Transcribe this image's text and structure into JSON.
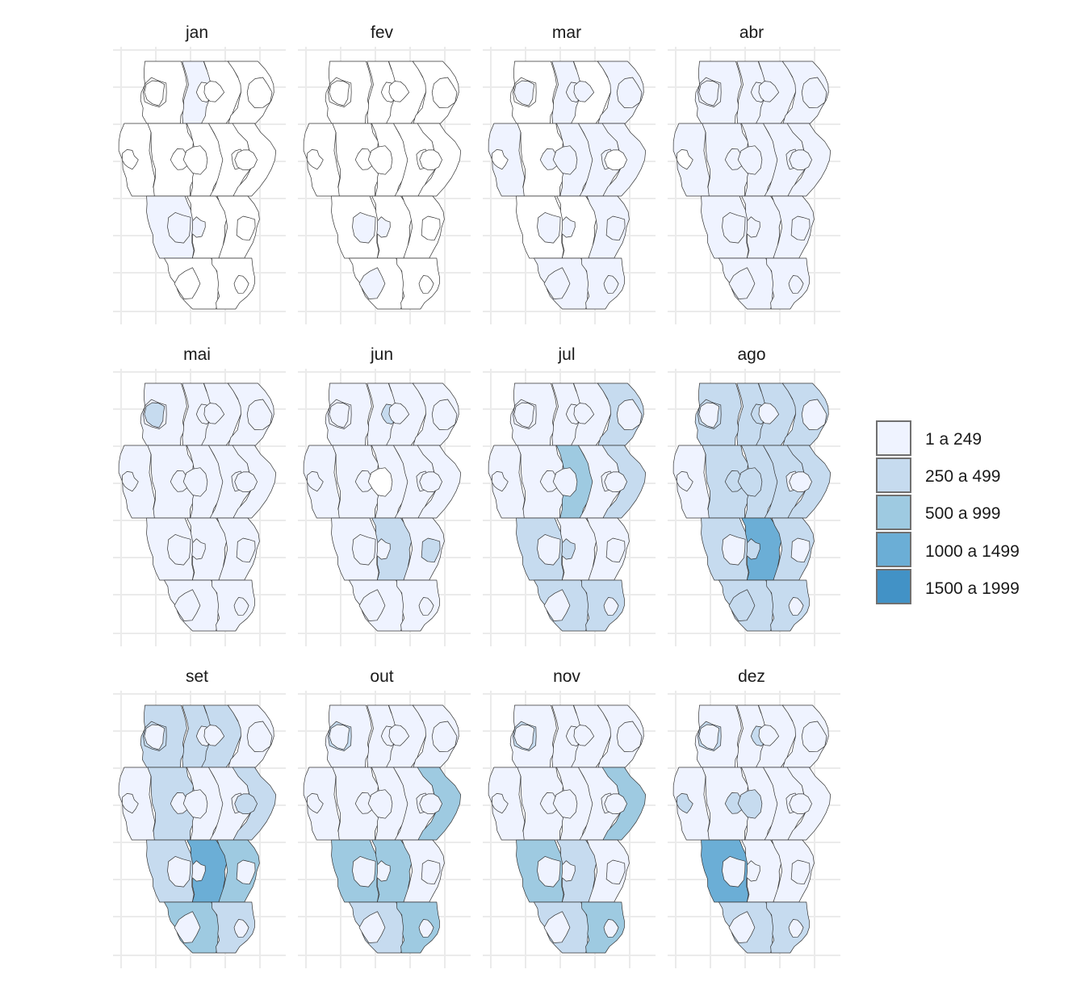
{
  "chart_data": {
    "type": "choropleth-small-multiples",
    "palette": {
      "empty": "#ffffff",
      "colors": [
        "#eff3ff",
        "#c6dbef",
        "#9ecae1",
        "#6baed6",
        "#4292c6"
      ]
    },
    "legend": {
      "placement": "right",
      "labels": [
        "1 a 249",
        "250 a 499",
        "500 a 999",
        "1000 a 1499",
        "1500 a 1999"
      ]
    },
    "regions": [
      "R01",
      "R02",
      "R03",
      "R04",
      "R05",
      "R06",
      "R07",
      "R08",
      "R09",
      "R10",
      "R11",
      "R12",
      "R13",
      "R14",
      "R15",
      "R16",
      "R17",
      "R18",
      "R19",
      "R20",
      "R21",
      "R22",
      "R23",
      "R24",
      "R25",
      "R26",
      "R27",
      "R28",
      "R29"
    ],
    "panels": [
      {
        "month": "jan",
        "classes": [
          0,
          1,
          0,
          0,
          0,
          0,
          0,
          0,
          0,
          1,
          0,
          0,
          0,
          0,
          0,
          0,
          0,
          0,
          0,
          0,
          0,
          0,
          0,
          1,
          1,
          0,
          0,
          0,
          0
        ]
      },
      {
        "month": "fev",
        "classes": [
          0,
          0,
          0,
          0,
          0,
          0,
          0,
          0,
          0,
          0,
          0,
          0,
          0,
          0,
          0,
          0,
          0,
          0,
          0,
          0,
          0,
          0,
          0,
          1,
          1,
          0,
          1,
          0,
          0
        ]
      },
      {
        "month": "mar",
        "classes": [
          0,
          1,
          0,
          1,
          1,
          0,
          1,
          1,
          1,
          0,
          0,
          1,
          1,
          1,
          0,
          1,
          1,
          1,
          0,
          1,
          1,
          1,
          0,
          1,
          1,
          1,
          1,
          1,
          1
        ]
      },
      {
        "month": "abr",
        "classes": [
          1,
          1,
          1,
          1,
          1,
          1,
          1,
          1,
          1,
          1,
          1,
          1,
          1,
          1,
          1,
          1,
          1,
          1,
          0,
          1,
          1,
          1,
          1,
          1,
          1,
          1,
          1,
          1,
          1
        ]
      },
      {
        "month": "mai",
        "classes": [
          1,
          1,
          1,
          1,
          1,
          1,
          1,
          1,
          1,
          1,
          1,
          1,
          1,
          1,
          1,
          1,
          1,
          1,
          1,
          1,
          1,
          1,
          1,
          1,
          1,
          1,
          1,
          1,
          2
        ]
      },
      {
        "month": "jun",
        "classes": [
          1,
          1,
          1,
          1,
          1,
          1,
          1,
          1,
          1,
          1,
          2,
          1,
          1,
          1,
          1,
          2,
          1,
          1,
          1,
          1,
          0,
          1,
          1,
          1,
          1,
          2,
          1,
          1,
          1
        ]
      },
      {
        "month": "jul",
        "classes": [
          1,
          1,
          1,
          2,
          1,
          1,
          3,
          1,
          2,
          2,
          1,
          1,
          2,
          2,
          1,
          1,
          1,
          1,
          1,
          1,
          1,
          1,
          1,
          1,
          2,
          1,
          1,
          1,
          1
        ]
      },
      {
        "month": "ago",
        "classes": [
          2,
          2,
          2,
          2,
          1,
          2,
          2,
          2,
          2,
          2,
          4,
          2,
          2,
          2,
          2,
          2,
          1,
          1,
          1,
          2,
          2,
          1,
          1,
          1,
          2,
          1,
          2,
          1,
          1
        ]
      },
      {
        "month": "set",
        "classes": [
          2,
          2,
          2,
          1,
          1,
          2,
          1,
          1,
          2,
          2,
          4,
          3,
          3,
          2,
          2,
          1,
          1,
          1,
          1,
          1,
          1,
          1,
          2,
          1,
          1,
          1,
          1,
          1,
          1
        ]
      },
      {
        "month": "out",
        "classes": [
          1,
          1,
          1,
          1,
          1,
          1,
          1,
          1,
          3,
          3,
          3,
          1,
          2,
          3,
          2,
          1,
          1,
          1,
          1,
          1,
          1,
          1,
          1,
          1,
          1,
          1,
          1,
          1,
          1
        ]
      },
      {
        "month": "nov",
        "classes": [
          1,
          1,
          1,
          1,
          1,
          1,
          1,
          1,
          3,
          3,
          2,
          1,
          2,
          3,
          2,
          1,
          1,
          1,
          1,
          1,
          1,
          1,
          1,
          1,
          1,
          1,
          1,
          1,
          1
        ]
      },
      {
        "month": "dez",
        "classes": [
          1,
          1,
          1,
          1,
          1,
          1,
          1,
          1,
          1,
          4,
          1,
          1,
          2,
          2,
          2,
          2,
          1,
          1,
          2,
          2,
          2,
          1,
          1,
          1,
          1,
          1,
          1,
          1,
          1
        ]
      }
    ]
  }
}
